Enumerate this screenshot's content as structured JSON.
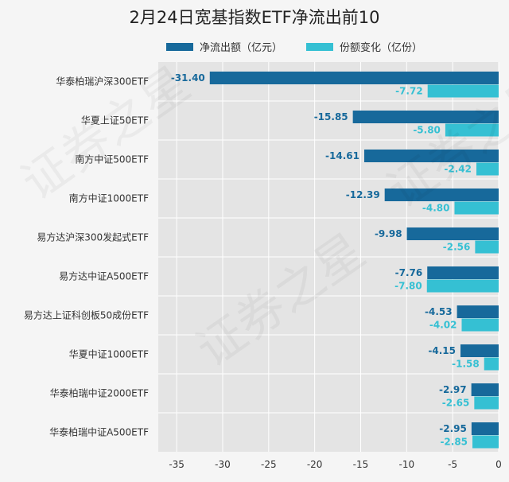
{
  "chart_data": {
    "type": "bar",
    "orientation": "horizontal",
    "title": "2月24日宽基指数ETF净流出前10",
    "categories": [
      "华泰柏瑞沪深300ETF",
      "华夏上证50ETF",
      "南方中证500ETF",
      "南方中证1000ETF",
      "易方达沪深300发起式ETF",
      "易方达中证A500ETF",
      "易方达上证科创板50成份ETF",
      "华夏中证1000ETF",
      "华泰柏瑞中证2000ETF",
      "华泰柏瑞中证A500ETF"
    ],
    "series": [
      {
        "name": "净流出额（亿元）",
        "color": "#17699b",
        "values": [
          -31.4,
          -15.85,
          -14.61,
          -12.39,
          -9.98,
          -7.76,
          -4.53,
          -4.15,
          -2.97,
          -2.95
        ],
        "labels": [
          "-31.40",
          "-15.85",
          "-14.61",
          "-12.39",
          "-9.98",
          "-7.76",
          "-4.53",
          "-4.15",
          "-2.97",
          "-2.95"
        ]
      },
      {
        "name": "份额变化（亿份）",
        "color": "#35c0d3",
        "values": [
          -7.72,
          -5.8,
          -2.42,
          -4.8,
          -2.56,
          -7.8,
          -4.02,
          -1.58,
          -2.65,
          -2.85
        ],
        "labels": [
          "-7.72",
          "-5.80",
          "-2.42",
          "-4.80",
          "-2.56",
          "-7.80",
          "-4.02",
          "-1.58",
          "-2.65",
          "-2.85"
        ]
      }
    ],
    "xlim": [
      -37,
      0
    ],
    "xticks": [
      -35,
      -30,
      -25,
      -20,
      -15,
      -10,
      -5,
      0
    ],
    "xtick_labels": [
      "-35",
      "-30",
      "-25",
      "-20",
      "-15",
      "-10",
      "-5",
      "0"
    ],
    "grid": true,
    "legend_position": "top-center",
    "plot_background": "#e4e4e4"
  },
  "watermark": "证券之星"
}
